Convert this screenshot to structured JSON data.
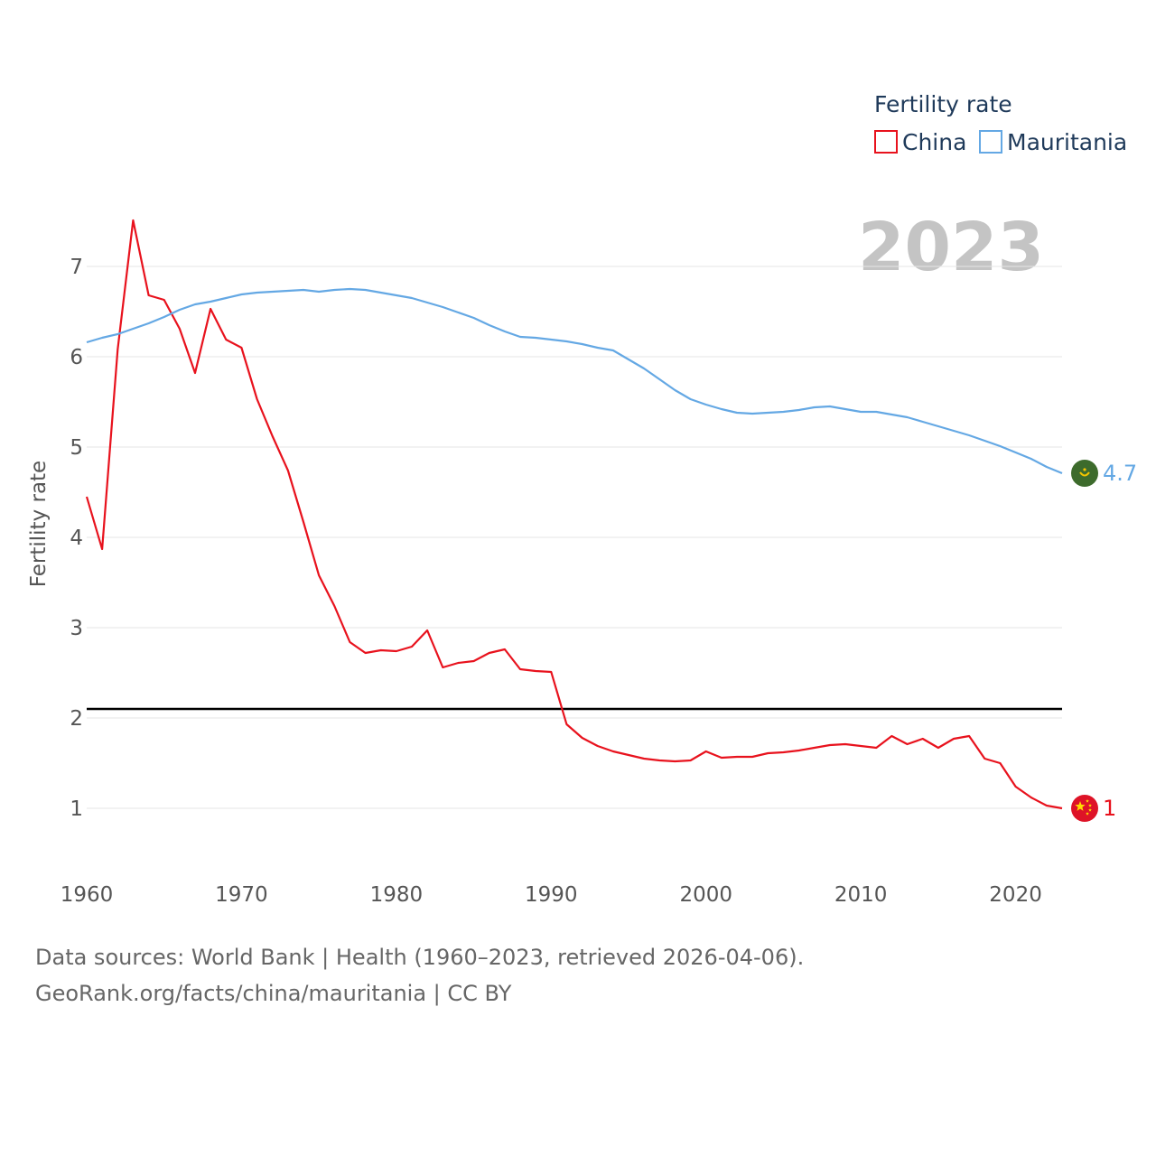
{
  "chart_data": {
    "type": "line",
    "title": "",
    "legend_title": "Fertility rate",
    "legend_position": "top-right",
    "ylabel": "Fertility rate",
    "xlabel": "",
    "xlim": [
      1960,
      2023
    ],
    "ylim": [
      0.35,
      7.95
    ],
    "x_ticks": [
      1960,
      1970,
      1980,
      1990,
      2000,
      2010,
      2020
    ],
    "y_ticks": [
      1,
      2,
      3,
      4,
      5,
      6,
      7
    ],
    "grid": true,
    "year_watermark": "2023",
    "reference_line": {
      "y": 2.1,
      "color": "#000000"
    },
    "x": [
      1960,
      1961,
      1962,
      1963,
      1964,
      1965,
      1966,
      1967,
      1968,
      1969,
      1970,
      1971,
      1972,
      1973,
      1974,
      1975,
      1976,
      1977,
      1978,
      1979,
      1980,
      1981,
      1982,
      1983,
      1984,
      1985,
      1986,
      1987,
      1988,
      1989,
      1990,
      1991,
      1992,
      1993,
      1994,
      1995,
      1996,
      1997,
      1998,
      1999,
      2000,
      2001,
      2002,
      2003,
      2004,
      2005,
      2006,
      2007,
      2008,
      2009,
      2010,
      2011,
      2012,
      2013,
      2014,
      2015,
      2016,
      2017,
      2018,
      2019,
      2020,
      2021,
      2022,
      2023
    ],
    "series": [
      {
        "name": "China",
        "color": "#e8121d",
        "end_label": "1",
        "values": [
          4.45,
          3.87,
          6.08,
          7.51,
          6.68,
          6.63,
          6.31,
          5.82,
          6.53,
          6.19,
          6.1,
          5.53,
          5.12,
          4.74,
          4.17,
          3.58,
          3.24,
          2.84,
          2.72,
          2.75,
          2.74,
          2.79,
          2.97,
          2.56,
          2.61,
          2.63,
          2.72,
          2.76,
          2.54,
          2.52,
          2.51,
          1.93,
          1.78,
          1.69,
          1.63,
          1.59,
          1.55,
          1.53,
          1.52,
          1.53,
          1.63,
          1.56,
          1.57,
          1.57,
          1.61,
          1.62,
          1.64,
          1.67,
          1.7,
          1.71,
          1.69,
          1.67,
          1.8,
          1.71,
          1.77,
          1.67,
          1.77,
          1.8,
          1.55,
          1.5,
          1.24,
          1.12,
          1.03,
          1.0
        ]
      },
      {
        "name": "Mauritania",
        "color": "#64a8e4",
        "end_label": "4.7",
        "values": [
          6.16,
          6.21,
          6.25,
          6.31,
          6.37,
          6.44,
          6.52,
          6.58,
          6.61,
          6.65,
          6.69,
          6.71,
          6.72,
          6.73,
          6.74,
          6.72,
          6.74,
          6.75,
          6.74,
          6.71,
          6.68,
          6.65,
          6.6,
          6.55,
          6.49,
          6.43,
          6.35,
          6.28,
          6.22,
          6.21,
          6.19,
          6.17,
          6.14,
          6.1,
          6.07,
          5.97,
          5.87,
          5.75,
          5.63,
          5.53,
          5.47,
          5.42,
          5.38,
          5.37,
          5.38,
          5.39,
          5.41,
          5.44,
          5.45,
          5.42,
          5.39,
          5.39,
          5.36,
          5.33,
          5.28,
          5.23,
          5.18,
          5.13,
          5.07,
          5.01,
          4.94,
          4.87,
          4.78,
          4.71
        ]
      }
    ]
  },
  "sources": {
    "line1": "Data sources: World Bank | Health (1960–2023, retrieved 2026-04-06).",
    "line2": "GeoRank.org/facts/china/mauritania | CC BY"
  },
  "flags": {
    "China": {
      "icon": "china-flag-icon",
      "bg": "#de1327",
      "star": "#ffde00"
    },
    "Mauritania": {
      "icon": "mauritania-flag-icon",
      "bg": "#3d6b2c",
      "emblem": "#f3c400"
    }
  }
}
